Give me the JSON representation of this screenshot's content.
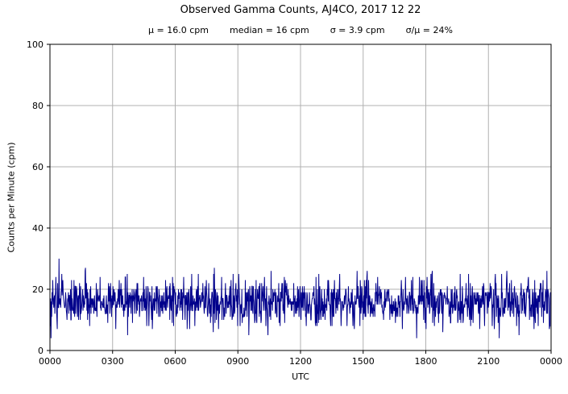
{
  "chart_data": {
    "type": "line",
    "title": "Observed Gamma Counts, AJ4CO, 2017 12 22",
    "stats_text": [
      "μ = 16.0 cpm",
      "median = 16 cpm",
      "σ = 3.9 cpm",
      "σ/μ = 24%"
    ],
    "stats": {
      "mean_cpm": 16.0,
      "median_cpm": 16,
      "sigma_cpm": 3.9,
      "sigma_over_mu_percent": 24
    },
    "xlabel": "UTC",
    "ylabel": "Counts per Minute (cpm)",
    "ylim": [
      0,
      100
    ],
    "yticks": [
      0,
      20,
      40,
      60,
      80,
      100
    ],
    "xticks": [
      "0000",
      "0300",
      "0600",
      "0900",
      "1200",
      "1500",
      "1800",
      "2100",
      "0000"
    ],
    "grid": true,
    "grid_color": "#b0b0b0",
    "line_color": "#00008b",
    "axis_color": "#000000",
    "series": [
      {
        "name": "observed gamma counts",
        "generator": {
          "type": "gaussian-noise-integer-counts",
          "n": 1440,
          "mean": 16.0,
          "sigma": 3.9,
          "min": 4,
          "max": 30,
          "seed": 20171222
        }
      }
    ]
  }
}
